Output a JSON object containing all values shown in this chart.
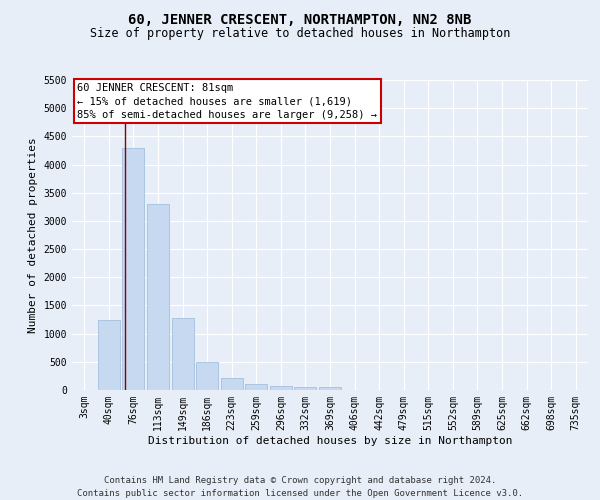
{
  "title": "60, JENNER CRESCENT, NORTHAMPTON, NN2 8NB",
  "subtitle": "Size of property relative to detached houses in Northampton",
  "xlabel": "Distribution of detached houses by size in Northampton",
  "ylabel": "Number of detached properties",
  "footer_line1": "Contains HM Land Registry data © Crown copyright and database right 2024.",
  "footer_line2": "Contains public sector information licensed under the Open Government Licence v3.0.",
  "annotation_title": "60 JENNER CRESCENT: 81sqm",
  "annotation_line2": "← 15% of detached houses are smaller (1,619)",
  "annotation_line3": "85% of semi-detached houses are larger (9,258) →",
  "bar_color": "#c6d9f0",
  "bar_edge_color": "#9ab9d8",
  "marker_color": "#8b0000",
  "categories": [
    "3sqm",
    "40sqm",
    "76sqm",
    "113sqm",
    "149sqm",
    "186sqm",
    "223sqm",
    "259sqm",
    "296sqm",
    "332sqm",
    "369sqm",
    "406sqm",
    "442sqm",
    "479sqm",
    "515sqm",
    "552sqm",
    "589sqm",
    "625sqm",
    "662sqm",
    "698sqm",
    "735sqm"
  ],
  "values": [
    0,
    1250,
    4300,
    3300,
    1280,
    490,
    220,
    100,
    70,
    60,
    60,
    0,
    0,
    0,
    0,
    0,
    0,
    0,
    0,
    0,
    0
  ],
  "ylim": [
    0,
    5500
  ],
  "yticks": [
    0,
    500,
    1000,
    1500,
    2000,
    2500,
    3000,
    3500,
    4000,
    4500,
    5000,
    5500
  ],
  "bg_color": "#e8eef8",
  "plot_bg_color": "#e8eef8",
  "grid_color": "#ffffff",
  "title_fontsize": 10,
  "subtitle_fontsize": 8.5,
  "axis_label_fontsize": 8,
  "tick_fontsize": 7,
  "footer_fontsize": 6.5,
  "annotation_fontsize": 7.5
}
